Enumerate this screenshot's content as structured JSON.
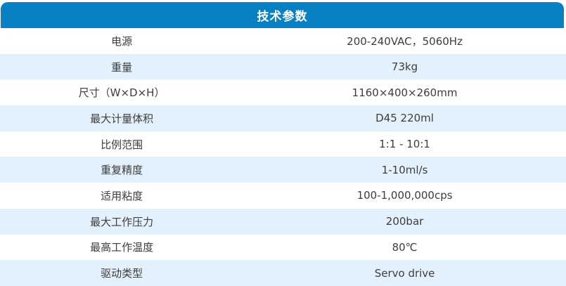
{
  "header": {
    "title": "技术参数"
  },
  "table": {
    "rows": [
      {
        "label": "电源",
        "value": "200-240VAC，5060Hz"
      },
      {
        "label": "重量",
        "value": "73kg"
      },
      {
        "label": "尺寸（W×D×H）",
        "value": "1160×400×260mm"
      },
      {
        "label": "最大计量体积",
        "value": "D45 220ml"
      },
      {
        "label": "比例范围",
        "value": "1:1 - 10:1"
      },
      {
        "label": "重复精度",
        "value": "1-10ml/s"
      },
      {
        "label": "适用粘度",
        "value": "100-1,000,000cps"
      },
      {
        "label": "最大工作压力",
        "value": "200bar"
      },
      {
        "label": "最高工作温度",
        "value": "80℃"
      },
      {
        "label": "驱动类型",
        "value": "Servo drive"
      }
    ]
  },
  "chart_data": {
    "type": "table",
    "title": "技术参数",
    "rows": [
      [
        "电源",
        "200-240VAC，5060Hz"
      ],
      [
        "重量",
        "73kg"
      ],
      [
        "尺寸（W×D×H）",
        "1160×400×260mm"
      ],
      [
        "最大计量体积",
        "D45 220ml"
      ],
      [
        "比例范围",
        "1:1 - 10:1"
      ],
      [
        "重复精度",
        "1-10ml/s"
      ],
      [
        "适用粘度",
        "100-1,000,000cps"
      ],
      [
        "最大工作压力",
        "200bar"
      ],
      [
        "最高工作温度",
        "80℃"
      ],
      [
        "驱动类型",
        "Servo drive"
      ]
    ]
  },
  "colors": {
    "header_bg": "#0881C4",
    "header_text": "#FFFFFF",
    "row_bg": "#FFFFFF",
    "row_alt_bg": "#E3F1FC",
    "text_color": "#3D3D3D"
  }
}
